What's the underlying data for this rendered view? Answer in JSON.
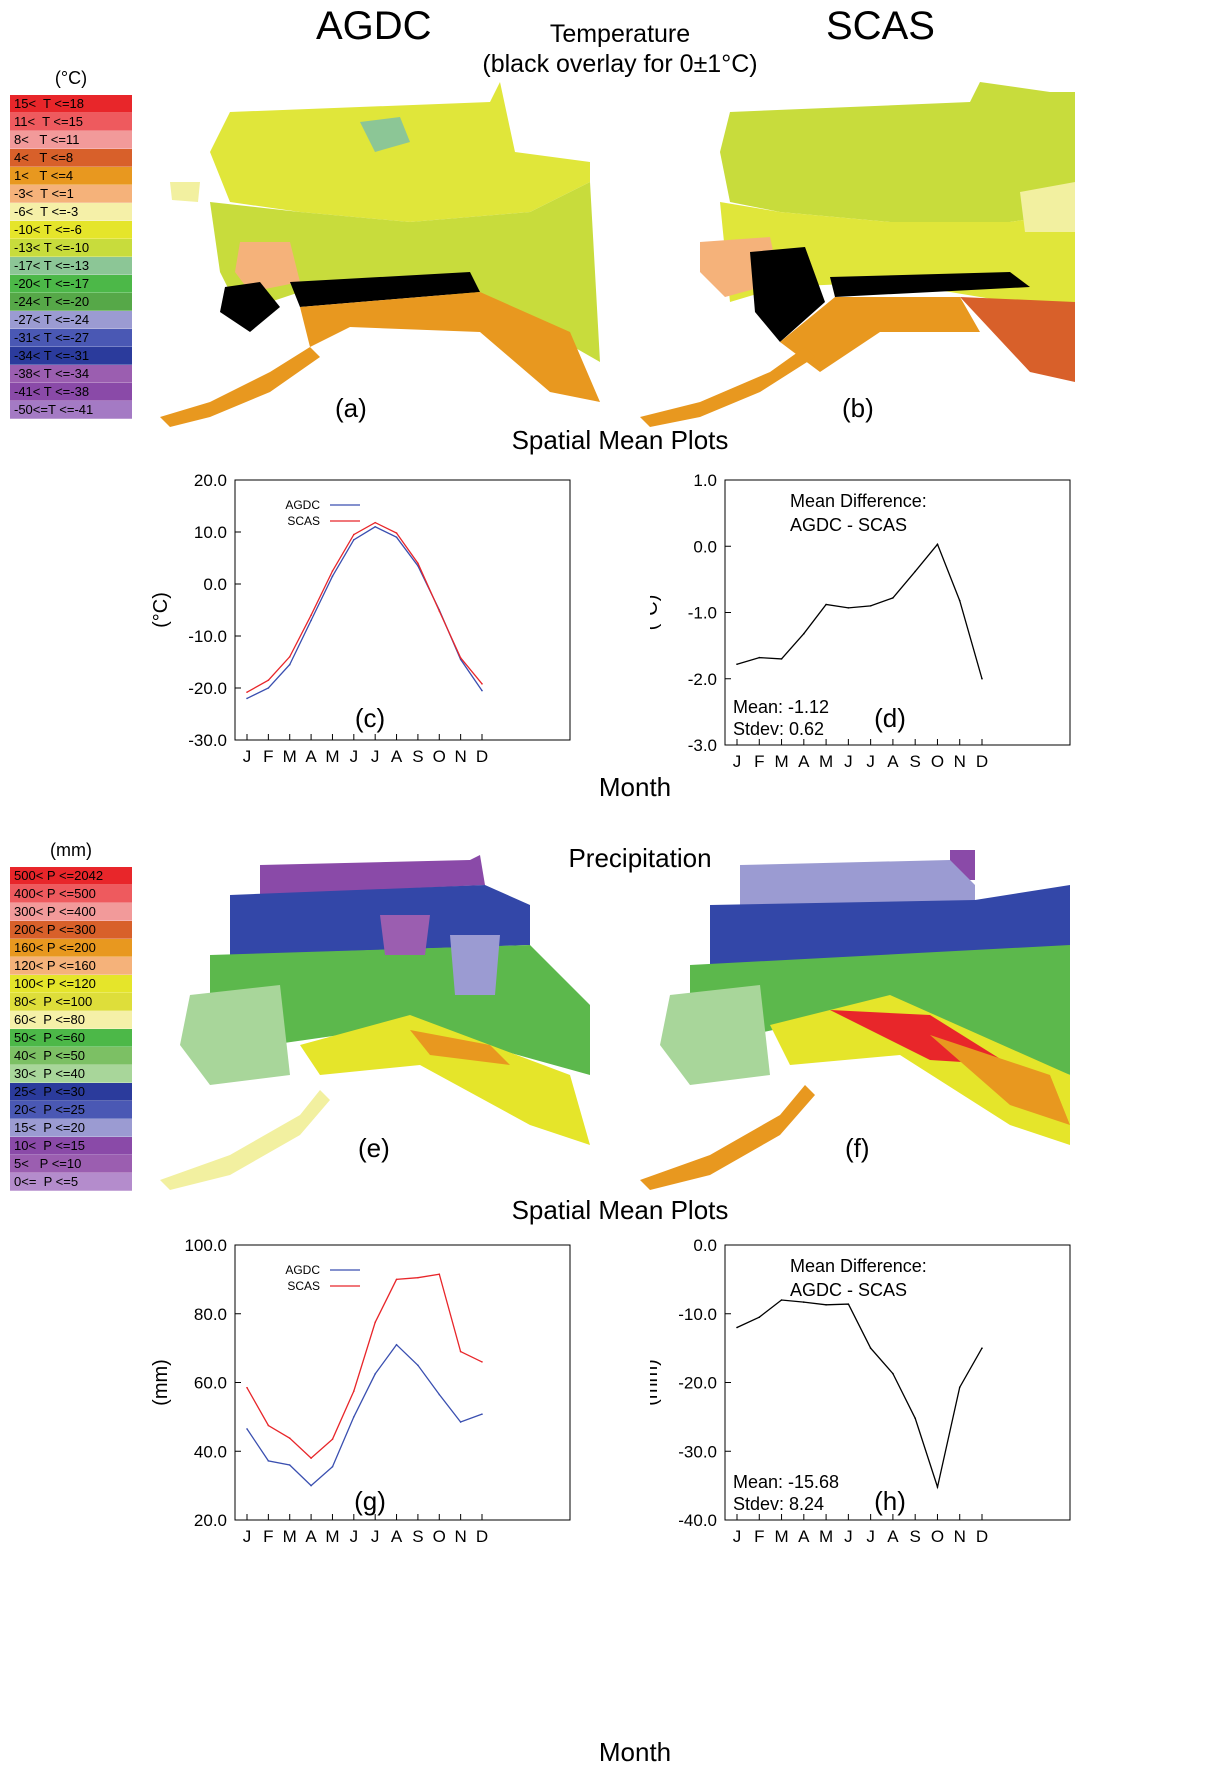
{
  "titles": {
    "left": "AGDC",
    "right": "SCAS",
    "temp_line1": "Temperature",
    "temp_line2": "(black overlay for 0±1°C)",
    "precip": "Precipitation",
    "spatial_mean_1": "Spatial Mean Plots",
    "spatial_mean_2": "Spatial Mean Plots",
    "month_1": "Month",
    "month_2": "Month"
  },
  "panel_labels": {
    "a": "(a)",
    "b": "(b)",
    "c": "(c)",
    "d": "(d)",
    "e": "(e)",
    "f": "(f)",
    "g": "(g)",
    "h": "(h)"
  },
  "temp_legend": {
    "unit": "(°C)",
    "entries": [
      {
        "label": "15<  T <=18",
        "color": "#e8262a"
      },
      {
        "label": "11<  T <=15",
        "color": "#ee5a5e"
      },
      {
        "label": "8<   T <=11",
        "color": "#f29a9a"
      },
      {
        "label": "4<   T <=8",
        "color": "#d8602a"
      },
      {
        "label": "1<   T <=4",
        "color": "#e8981f"
      },
      {
        "label": "-3<  T <=1",
        "color": "#f5b27a"
      },
      {
        "label": "-6<  T <=-3",
        "color": "#f5f0a8"
      },
      {
        "label": "-10< T <=-6",
        "color": "#e5e52a"
      },
      {
        "label": "-13< T <=-10",
        "color": "#c8dc3c"
      },
      {
        "label": "-17< T <=-13",
        "color": "#8cc696"
      },
      {
        "label": "-20< T <=-17",
        "color": "#4cb848"
      },
      {
        "label": "-24< T <=-20",
        "color": "#56a848"
      },
      {
        "label": "-27< T <=-24",
        "color": "#9b9bd2"
      },
      {
        "label": "-31< T <=-27",
        "color": "#4a58b4"
      },
      {
        "label": "-34< T <=-31",
        "color": "#2b3b9c"
      },
      {
        "label": "-38< T <=-34",
        "color": "#9b5eb0"
      },
      {
        "label": "-41< T <=-38",
        "color": "#8a4aa8"
      },
      {
        "label": "-50<=T <=-41",
        "color": "#a47ac4"
      }
    ]
  },
  "precip_legend": {
    "unit": "(mm)",
    "entries": [
      {
        "label": "500< P <=2042",
        "color": "#e8262a"
      },
      {
        "label": "400< P <=500",
        "color": "#ee5a5e"
      },
      {
        "label": "300< P <=400",
        "color": "#f29a9a"
      },
      {
        "label": "200< P <=300",
        "color": "#d8602a"
      },
      {
        "label": "160< P <=200",
        "color": "#e8981f"
      },
      {
        "label": "120< P <=160",
        "color": "#f5b27a"
      },
      {
        "label": "100< P <=120",
        "color": "#e5e52a"
      },
      {
        "label": "80<  P <=100",
        "color": "#dede3a"
      },
      {
        "label": "60<  P <=80",
        "color": "#f5f0a8"
      },
      {
        "label": "50<  P <=60",
        "color": "#4cb848"
      },
      {
        "label": "40<  P <=50",
        "color": "#7cc064"
      },
      {
        "label": "30<  P <=40",
        "color": "#a8d69a"
      },
      {
        "label": "25<  P <=30",
        "color": "#2b3b9c"
      },
      {
        "label": "20<  P <=25",
        "color": "#4a58b4"
      },
      {
        "label": "15<  P <=20",
        "color": "#9b9bd2"
      },
      {
        "label": "10<  P <=15",
        "color": "#8a4aa8"
      },
      {
        "label": "5<   P <=10",
        "color": "#9b5eb0"
      },
      {
        "label": "0<=  P <=5",
        "color": "#b48ccc"
      }
    ]
  },
  "chart_data": [
    {
      "id": "c",
      "type": "line",
      "categories": [
        "J",
        "F",
        "M",
        "A",
        "M",
        "J",
        "J",
        "A",
        "S",
        "O",
        "N",
        "D"
      ],
      "ylabel": "(°C)",
      "ylim": [
        -30,
        20
      ],
      "yticks": [
        "20.0",
        "10.0",
        "0.0",
        "-10.0",
        "-20.0",
        "-30.0"
      ],
      "series": [
        {
          "name": "AGDC",
          "color": "#3a4fb0",
          "values": [
            -22.0,
            -20.0,
            -15.5,
            -7.0,
            1.5,
            8.5,
            11.0,
            9.0,
            3.5,
            -5.0,
            -14.5,
            -20.5
          ]
        },
        {
          "name": "SCAS",
          "color": "#e8262a",
          "values": [
            -20.8,
            -18.5,
            -14.0,
            -6.0,
            2.5,
            9.5,
            11.8,
            9.8,
            4.0,
            -5.2,
            -14.2,
            -19.2
          ]
        }
      ]
    },
    {
      "id": "d",
      "type": "line",
      "categories": [
        "J",
        "F",
        "M",
        "A",
        "M",
        "J",
        "J",
        "A",
        "S",
        "O",
        "N",
        "D"
      ],
      "ylabel": "(°C)",
      "ylim": [
        -3,
        1
      ],
      "yticks": [
        "1.0",
        "0.0",
        "-1.0",
        "-2.0",
        "-3.0"
      ],
      "annotation": [
        "Mean Difference:",
        "AGDC - SCAS"
      ],
      "stats": [
        "Mean: -1.12",
        "Stdev: 0.62"
      ],
      "series": [
        {
          "color": "#000000",
          "values": [
            -1.78,
            -1.68,
            -1.7,
            -1.32,
            -0.88,
            -0.93,
            -0.9,
            -0.78,
            -0.38,
            0.03,
            -0.82,
            -2.0
          ]
        }
      ]
    },
    {
      "id": "g",
      "type": "line",
      "categories": [
        "J",
        "F",
        "M",
        "A",
        "M",
        "J",
        "J",
        "A",
        "S",
        "O",
        "N",
        "D"
      ],
      "ylabel": "(mm)",
      "ylim": [
        20,
        100
      ],
      "yticks": [
        "100.0",
        "80.0",
        "60.0",
        "40.0",
        "20.0"
      ],
      "series": [
        {
          "name": "AGDC",
          "color": "#3a4fb0",
          "values": [
            46.5,
            37.2,
            36.0,
            30.0,
            35.5,
            50.0,
            62.5,
            71.0,
            65.0,
            56.5,
            48.5,
            50.8
          ]
        },
        {
          "name": "SCAS",
          "color": "#e8262a",
          "values": [
            58.5,
            47.5,
            43.8,
            38.0,
            43.5,
            57.5,
            77.5,
            90.0,
            90.5,
            91.5,
            69.0,
            66.0
          ]
        }
      ]
    },
    {
      "id": "h",
      "type": "line",
      "categories": [
        "J",
        "F",
        "M",
        "A",
        "M",
        "J",
        "J",
        "A",
        "S",
        "O",
        "N",
        "D"
      ],
      "ylabel": "(mm)",
      "ylim": [
        -40,
        0
      ],
      "yticks": [
        "0.0",
        "-10.0",
        "-20.0",
        "-30.0",
        "-40.0"
      ],
      "annotation": [
        "Mean Difference:",
        "AGDC - SCAS"
      ],
      "stats": [
        "Mean: -15.68",
        "Stdev: 8.24"
      ],
      "series": [
        {
          "color": "#000000",
          "values": [
            -12.0,
            -10.5,
            -8.0,
            -8.3,
            -8.7,
            -8.6,
            -15.0,
            -18.7,
            -25.2,
            -35.2,
            -20.7,
            -15.0
          ]
        }
      ]
    }
  ],
  "map_colors": {
    "t_yellow": "#e0e63a",
    "t_lightyellow": "#f2f0a0",
    "t_lime": "#c8dc3c",
    "t_salmon": "#f5b27a",
    "t_orange": "#e8981f",
    "t_darkorange": "#d8602a",
    "t_teal": "#8cc696",
    "black": "#000000",
    "p_blue": "#3347a8",
    "p_lavender": "#9b9bd2",
    "p_purple": "#8a4aa8",
    "p_green": "#5cb84c",
    "p_lightgreen": "#a8d69a",
    "p_yellow": "#e5e52a",
    "p_orange": "#e8981f",
    "p_red": "#e8262a"
  }
}
